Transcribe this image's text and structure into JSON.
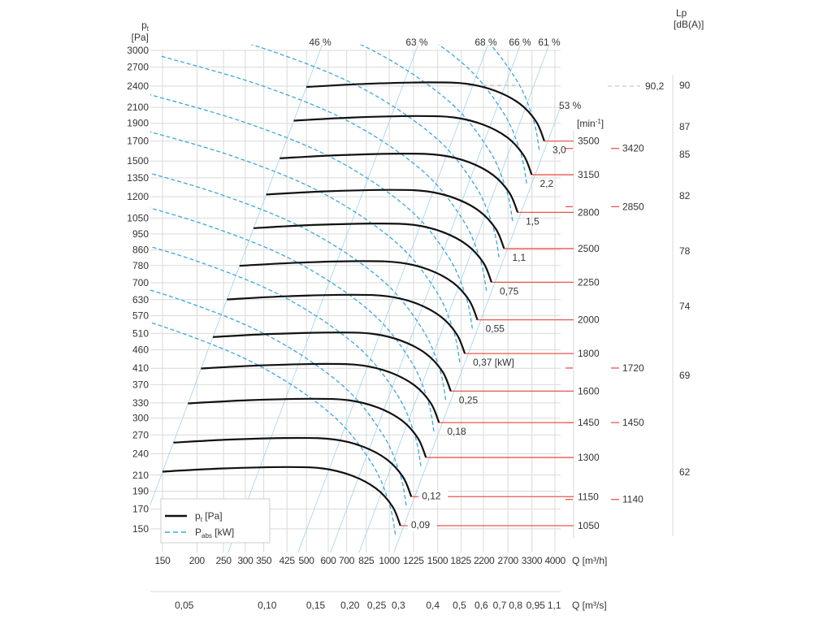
{
  "chart_data": {
    "type": "line",
    "title": "",
    "y_axis": {
      "symbol": "p",
      "sub": "t",
      "unit": "[Pa]",
      "scale": "log",
      "ticks": [
        3000,
        2700,
        2400,
        2100,
        1900,
        1700,
        1500,
        1350,
        1200,
        1050,
        950,
        860,
        780,
        700,
        630,
        570,
        510,
        460,
        410,
        370,
        330,
        300,
        270,
        240,
        210,
        190,
        170,
        150
      ]
    },
    "x_axis": {
      "label": "Q [m³/h]",
      "scale": "log",
      "ticks": [
        150,
        200,
        250,
        300,
        350,
        425,
        500,
        600,
        700,
        825,
        1000,
        1225,
        1500,
        1825,
        2200,
        2700,
        3300,
        4000
      ]
    },
    "x2_axis": {
      "label": "Q [m³/s]",
      "ticks": [
        {
          "v": 0.05,
          "t": "0,05"
        },
        {
          "v": 0.1,
          "t": "0,10"
        },
        {
          "v": 0.15,
          "t": "0,15"
        },
        {
          "v": 0.2,
          "t": "0,20"
        },
        {
          "v": 0.25,
          "t": "0,25"
        },
        {
          "v": 0.3,
          "t": "0,3"
        },
        {
          "v": 0.4,
          "t": "0,4"
        },
        {
          "v": 0.5,
          "t": "0,5"
        },
        {
          "v": 0.6,
          "t": "0,6"
        },
        {
          "v": 0.7,
          "t": "0,7"
        },
        {
          "v": 0.8,
          "t": "0,8"
        },
        {
          "v": 0.95,
          "t": "0,95"
        },
        {
          "v": 1.1,
          "t": "1,1"
        }
      ]
    },
    "rpm_axis": {
      "unit_pre": "[min",
      "unit_sup": "-1",
      "unit_post": "]"
    },
    "base_rpm": 3500,
    "base_curve": [
      [
        500,
        2385
      ],
      [
        820,
        2432
      ],
      [
        1413,
        2455
      ],
      [
        1919,
        2432
      ],
      [
        2438,
        2326
      ],
      [
        2985,
        2145
      ],
      [
        3420,
        1919
      ],
      [
        3660,
        1700
      ]
    ],
    "speeds": [
      {
        "rpm": "3500",
        "n": 3500,
        "power": "3,0"
      },
      {
        "rpm": "3150",
        "n": 3150,
        "power": "2,2"
      },
      {
        "rpm": "2800",
        "n": 2800,
        "power": "1,5"
      },
      {
        "rpm": "2500",
        "n": 2500,
        "power": "1,1"
      },
      {
        "rpm": "2250",
        "n": 2250,
        "power": "0,75"
      },
      {
        "rpm": "2000",
        "n": 2000,
        "power": "0,55"
      },
      {
        "rpm": "1800",
        "n": 1800,
        "power": "0,37 [kW]"
      },
      {
        "rpm": "1600",
        "n": 1600,
        "power": "0,25"
      },
      {
        "rpm": "1450",
        "n": 1450,
        "power": "0,18"
      },
      {
        "rpm": "1300",
        "n": 1300,
        "power": ""
      },
      {
        "rpm": "1150",
        "n": 1150,
        "power": "0,12"
      },
      {
        "rpm": "1050",
        "n": 1050,
        "power": "0,09"
      }
    ],
    "efficiency_lines": [
      {
        "label": "46 %",
        "q_at_3000": 561
      },
      {
        "label": "63 %",
        "q_at_3000": 1250
      },
      {
        "label": "68 %",
        "q_at_3000": 2244
      },
      {
        "label": "66 %",
        "q_at_3000": 2945
      },
      {
        "label": "61 %",
        "q_at_3000": 3741
      },
      {
        "label": "53 %",
        "q_at_3000": 5003
      }
    ],
    "noise_markers": [
      {
        "label": "3420",
        "n": 3420
      },
      {
        "label": "2850",
        "n": 2850
      },
      {
        "label": "1720",
        "n": 1720
      },
      {
        "label": "1450",
        "n": 1450
      },
      {
        "label": "1140",
        "n": 1140
      }
    ],
    "noise_max": {
      "label": "90,2",
      "value": 90.2
    },
    "lp_axis": {
      "title": "Lp",
      "unit": "[dB(A)]",
      "ticks": [
        90,
        87,
        85,
        82,
        78,
        74,
        69,
        62
      ]
    },
    "legend": [
      {
        "symbol": "p",
        "sub": "t",
        "unit": " [Pa]",
        "style": "solid"
      },
      {
        "symbol": "P",
        "sub": "abs",
        "unit": " [kW]",
        "style": "dashed"
      }
    ],
    "colors": {
      "curve": "#111111",
      "power": "#3aa8dc",
      "system": "#9fd3ee",
      "speed_line": "#e8574f",
      "grid": "#d9d9d9"
    }
  }
}
